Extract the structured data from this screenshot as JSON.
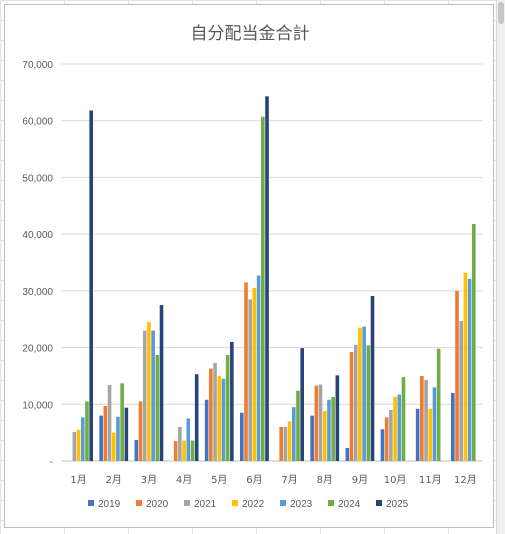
{
  "chart_data": {
    "type": "bar",
    "title": "自分配当金合計",
    "xlabel": "",
    "ylabel": "",
    "ylim": [
      0,
      70000
    ],
    "y_ticks": [
      "-",
      "10,000",
      "20,000",
      "30,000",
      "40,000",
      "50,000",
      "60,000",
      "70,000"
    ],
    "grid": true,
    "legend_position": "bottom",
    "categories": [
      "1月",
      "2月",
      "3月",
      "4月",
      "5月",
      "6月",
      "7月",
      "8月",
      "9月",
      "10月",
      "11月",
      "12月"
    ],
    "series": [
      {
        "name": "2019",
        "color": "#4472c4",
        "values": [
          0,
          8000,
          3700,
          0,
          10800,
          8500,
          0,
          8000,
          2300,
          5600,
          9200,
          12000
        ]
      },
      {
        "name": "2020",
        "color": "#ed7d31",
        "values": [
          0,
          9700,
          10500,
          3500,
          16300,
          31500,
          6000,
          13300,
          19200,
          7700,
          15000,
          30000
        ]
      },
      {
        "name": "2021",
        "color": "#a5a5a5",
        "values": [
          5100,
          13400,
          23000,
          6000,
          17300,
          28500,
          6000,
          13500,
          20500,
          9000,
          14300,
          24700
        ]
      },
      {
        "name": "2022",
        "color": "#ffc000",
        "values": [
          5500,
          5000,
          24500,
          3600,
          15000,
          30500,
          7000,
          8800,
          23500,
          11300,
          9200,
          33200
        ]
      },
      {
        "name": "2023",
        "color": "#5b9bd5",
        "values": [
          7700,
          7800,
          23000,
          7500,
          14500,
          32700,
          9500,
          10800,
          23700,
          11700,
          13000,
          32100
        ]
      },
      {
        "name": "2024",
        "color": "#70ad47",
        "values": [
          10500,
          13700,
          18700,
          3600,
          18700,
          60700,
          12400,
          11300,
          20400,
          14800,
          19800,
          41800
        ]
      },
      {
        "name": "2025",
        "color": "#264478",
        "values": [
          61800,
          9400,
          27500,
          15300,
          21000,
          64300,
          19900,
          15100,
          29100,
          0,
          0,
          0
        ]
      }
    ]
  }
}
